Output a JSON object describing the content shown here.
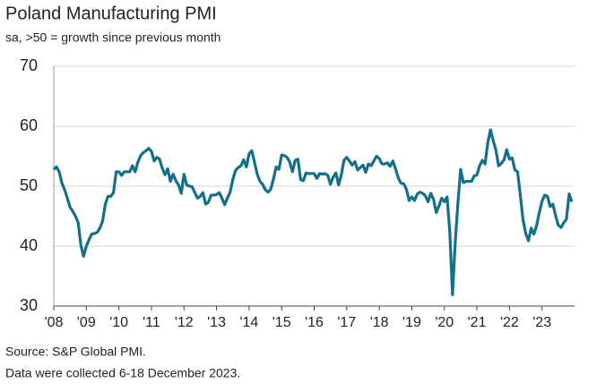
{
  "chart_data": {
    "type": "line",
    "title": "Poland Manufacturing PMI",
    "subtitle": "sa, >50 = growth since previous month",
    "notes": [
      "Source: S&P Global PMI.",
      "Data were collected 6-18 December 2023."
    ],
    "color": "#13708a",
    "grid": true,
    "ylim": [
      30,
      70
    ],
    "yticks": [
      30,
      40,
      50,
      60,
      70
    ],
    "categories": [
      "'08",
      null,
      null,
      null,
      null,
      null,
      null,
      null,
      null,
      null,
      null,
      null,
      "'09",
      null,
      null,
      null,
      null,
      null,
      null,
      null,
      null,
      null,
      null,
      null,
      "'10",
      null,
      null,
      null,
      null,
      null,
      null,
      null,
      null,
      null,
      null,
      null,
      "'11",
      null,
      null,
      null,
      null,
      null,
      null,
      null,
      null,
      null,
      null,
      null,
      "'12",
      null,
      null,
      null,
      null,
      null,
      null,
      null,
      null,
      null,
      null,
      null,
      "'13",
      null,
      null,
      null,
      null,
      null,
      null,
      null,
      null,
      null,
      null,
      null,
      "'14",
      null,
      null,
      null,
      null,
      null,
      null,
      null,
      null,
      null,
      null,
      null,
      "'15",
      null,
      null,
      null,
      null,
      null,
      null,
      null,
      null,
      null,
      null,
      null,
      "'16",
      null,
      null,
      null,
      null,
      null,
      null,
      null,
      null,
      null,
      null,
      null,
      "'17",
      null,
      null,
      null,
      null,
      null,
      null,
      null,
      null,
      null,
      null,
      null,
      "'18",
      null,
      null,
      null,
      null,
      null,
      null,
      null,
      null,
      null,
      null,
      null,
      "'19",
      null,
      null,
      null,
      null,
      null,
      null,
      null,
      null,
      null,
      null,
      null,
      "'20",
      null,
      null,
      null,
      null,
      null,
      null,
      null,
      null,
      null,
      null,
      null,
      "'21",
      null,
      null,
      null,
      null,
      null,
      null,
      null,
      null,
      null,
      null,
      null,
      "'22",
      null,
      null,
      null,
      null,
      null,
      null,
      null,
      null,
      null,
      null,
      null,
      "'23",
      null,
      null,
      null,
      null,
      null,
      null,
      null,
      null,
      null,
      null,
      null
    ],
    "values": [
      52.8,
      53.2,
      52.4,
      50.5,
      49.4,
      48.0,
      46.5,
      45.8,
      45.0,
      43.9,
      40.1,
      38.3,
      40.0,
      41.1,
      42.0,
      42.1,
      42.3,
      43.0,
      44.2,
      47.0,
      48.3,
      48.3,
      48.9,
      52.4,
      52.4,
      51.8,
      52.4,
      52.4,
      52.4,
      53.4,
      52.4,
      54.0,
      55.1,
      55.6,
      55.9,
      56.3,
      55.8,
      54.2,
      54.8,
      54.5,
      53.0,
      51.9,
      52.9,
      50.8,
      52.0,
      50.9,
      50.2,
      48.8,
      52.0,
      50.2,
      50.0,
      49.9,
      48.9,
      48.0,
      48.3,
      48.9,
      47.0,
      47.3,
      48.5,
      48.5,
      48.6,
      48.9,
      48.0,
      46.9,
      48.0,
      49.0,
      51.1,
      52.6,
      53.1,
      53.4,
      54.4,
      53.2,
      55.4,
      55.9,
      54.0,
      52.0,
      50.8,
      50.3,
      49.4,
      49.0,
      49.5,
      51.2,
      53.2,
      52.8,
      55.2,
      55.1,
      54.8,
      54.0,
      52.4,
      54.3,
      54.5,
      51.1,
      50.9,
      52.2,
      52.1,
      52.1,
      52.1,
      51.3,
      52.1,
      52.0,
      52.1,
      51.8,
      50.3,
      51.5,
      52.2,
      50.2,
      51.9,
      54.3,
      54.8,
      54.2,
      53.5,
      54.1,
      52.7,
      53.1,
      53.5,
      52.3,
      53.7,
      53.4,
      54.2,
      55.0,
      54.6,
      53.7,
      53.7,
      53.9,
      53.3,
      54.2,
      52.9,
      51.4,
      50.5,
      50.4,
      49.5,
      47.6,
      48.2,
      47.6,
      48.7,
      49.0,
      48.8,
      48.4,
      47.4,
      48.8,
      47.8,
      45.6,
      46.7,
      48.0,
      47.4,
      48.2,
      42.4,
      31.9,
      40.6,
      47.2,
      52.8,
      50.6,
      50.8,
      50.8,
      50.8,
      51.7,
      51.9,
      53.4,
      54.3,
      53.7,
      57.2,
      59.4,
      57.6,
      56.0,
      53.4,
      53.8,
      54.4,
      56.1,
      54.5,
      54.7,
      52.7,
      52.4,
      48.5,
      44.4,
      42.1,
      40.9,
      43.0,
      42.0,
      43.4,
      45.6,
      47.5,
      48.5,
      48.3,
      46.6,
      47.0,
      45.1,
      43.5,
      43.1,
      43.9,
      44.5,
      48.7,
      47.4
    ]
  }
}
